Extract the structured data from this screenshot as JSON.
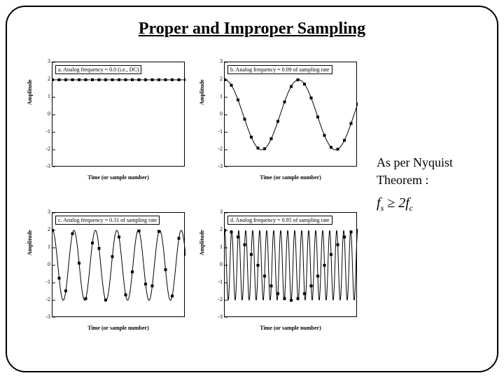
{
  "title": "Proper and Improper Sampling",
  "side": {
    "line1": "As per Nyquist",
    "line2": "Theorem :",
    "f": "f",
    "s": "s",
    "ge": " ≥ 2",
    "f2": "f",
    "c": "c"
  },
  "axis": {
    "ylabel": "Amplitude",
    "xlabel": "Time (or sample number)",
    "ylim": [
      -3,
      3
    ],
    "yticks": [
      -3,
      -2,
      -1,
      0,
      1,
      2,
      3
    ]
  },
  "panels": {
    "a": {
      "caption": "a.  Analog frequency = 0.0  (i.e., DC)",
      "freq_per_sample": 0.0,
      "dc_level": 2.0,
      "n_samples": 21,
      "line_color": "#000000",
      "marker_color": "#000000",
      "marker_size": 4
    },
    "b": {
      "caption": "b.  Analog frequency = 0.09 of sampling rate",
      "freq_per_sample": 0.09,
      "amplitude": 2.0,
      "n_samples": 21,
      "line_color": "#000000",
      "marker_color": "#000000",
      "marker_size": 4
    },
    "c": {
      "caption": "c.  Analog frequency = 0.31 of sampling rate",
      "freq_per_sample": 0.31,
      "amplitude": 2.0,
      "n_samples": 21,
      "line_color": "#000000",
      "marker_color": "#000000",
      "marker_size": 4
    },
    "d": {
      "caption": "d.  Analog frequency = 0.95 of sampling rate",
      "freq_per_sample": 0.95,
      "amplitude": 2.0,
      "n_samples": 21,
      "line_color": "#000000",
      "marker_color": "#000000",
      "marker_size": 4,
      "alias_freq": 0.05
    }
  },
  "plot": {
    "width": 190,
    "height": 150,
    "x_samples": 21,
    "curve_points": 400
  }
}
